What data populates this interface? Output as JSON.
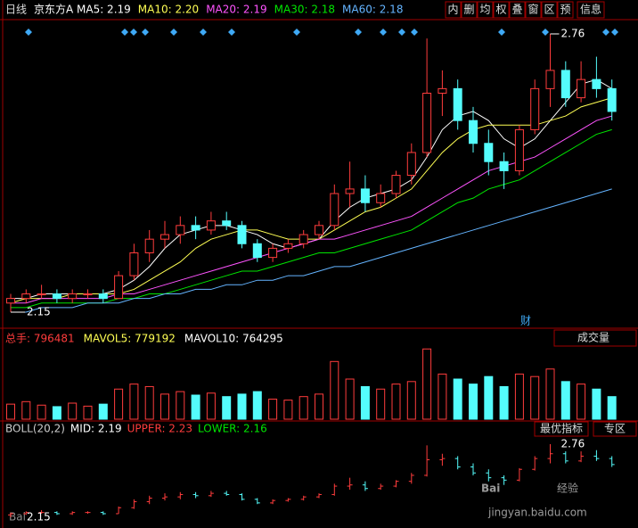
{
  "header": {
    "period": "日线",
    "name": "京东方A",
    "buttons": [
      "内",
      "删",
      "均",
      "权",
      "叠",
      "窗",
      "区",
      "预",
      "信息"
    ]
  },
  "chart_data": [
    {
      "type": "candlestick",
      "open": [
        2.17,
        2.18,
        2.19,
        2.19,
        2.18,
        2.19,
        2.19,
        2.18,
        2.23,
        2.28,
        2.31,
        2.32,
        2.34,
        2.33,
        2.35,
        2.34,
        2.3,
        2.27,
        2.29,
        2.3,
        2.32,
        2.34,
        2.41,
        2.42,
        2.39,
        2.41,
        2.45,
        2.5,
        2.63,
        2.64,
        2.57,
        2.52,
        2.48,
        2.46,
        2.55,
        2.64,
        2.68,
        2.62,
        2.66,
        2.64
      ],
      "high": [
        2.19,
        2.2,
        2.21,
        2.2,
        2.2,
        2.2,
        2.2,
        2.24,
        2.3,
        2.33,
        2.35,
        2.36,
        2.36,
        2.37,
        2.37,
        2.35,
        2.31,
        2.3,
        2.31,
        2.33,
        2.35,
        2.43,
        2.48,
        2.45,
        2.43,
        2.46,
        2.52,
        2.75,
        2.68,
        2.66,
        2.6,
        2.55,
        2.5,
        2.56,
        2.66,
        2.76,
        2.7,
        2.7,
        2.71,
        2.66
      ],
      "low": [
        2.15,
        2.17,
        2.18,
        2.17,
        2.17,
        2.18,
        2.17,
        2.18,
        2.22,
        2.26,
        2.29,
        2.3,
        2.31,
        2.32,
        2.33,
        2.29,
        2.26,
        2.26,
        2.28,
        2.29,
        2.31,
        2.33,
        2.38,
        2.37,
        2.38,
        2.4,
        2.43,
        2.49,
        2.58,
        2.55,
        2.5,
        2.45,
        2.42,
        2.45,
        2.54,
        2.6,
        2.6,
        2.61,
        2.62,
        2.57
      ],
      "close": [
        2.18,
        2.19,
        2.19,
        2.18,
        2.19,
        2.19,
        2.18,
        2.23,
        2.28,
        2.31,
        2.32,
        2.34,
        2.33,
        2.35,
        2.34,
        2.3,
        2.27,
        2.29,
        2.3,
        2.32,
        2.34,
        2.41,
        2.42,
        2.39,
        2.41,
        2.45,
        2.5,
        2.63,
        2.64,
        2.57,
        2.52,
        2.48,
        2.46,
        2.55,
        2.64,
        2.68,
        2.62,
        2.66,
        2.64,
        2.59
      ],
      "up_color": "#ff3c3c",
      "down_color": "#54fcfc",
      "max_label": 2.76,
      "min_label": 2.15,
      "annotation": "财",
      "series": [
        {
          "label": "MA5: 2.19",
          "color": "#ffffff",
          "values": [
            2.18,
            2.18,
            2.19,
            2.19,
            2.19,
            2.19,
            2.19,
            2.2,
            2.22,
            2.25,
            2.29,
            2.32,
            2.33,
            2.34,
            2.34,
            2.33,
            2.32,
            2.3,
            2.29,
            2.3,
            2.31,
            2.35,
            2.38,
            2.4,
            2.41,
            2.42,
            2.44,
            2.49,
            2.55,
            2.58,
            2.59,
            2.57,
            2.53,
            2.51,
            2.53,
            2.57,
            2.61,
            2.65,
            2.66,
            2.64
          ]
        },
        {
          "label": "MA10: 2.20",
          "color": "#ffff54",
          "values": [
            2.17,
            2.18,
            2.18,
            2.18,
            2.19,
            2.19,
            2.19,
            2.19,
            2.2,
            2.22,
            2.24,
            2.26,
            2.29,
            2.31,
            2.32,
            2.33,
            2.33,
            2.32,
            2.31,
            2.31,
            2.31,
            2.33,
            2.35,
            2.37,
            2.38,
            2.4,
            2.42,
            2.46,
            2.5,
            2.53,
            2.55,
            2.56,
            2.56,
            2.56,
            2.56,
            2.57,
            2.58,
            2.6,
            2.61,
            2.62
          ]
        },
        {
          "label": "MA20: 2.19",
          "color": "#ff54ff",
          "values": [
            2.17,
            2.17,
            2.18,
            2.18,
            2.18,
            2.18,
            2.18,
            2.19,
            2.19,
            2.2,
            2.21,
            2.22,
            2.23,
            2.24,
            2.25,
            2.26,
            2.27,
            2.28,
            2.29,
            2.3,
            2.31,
            2.31,
            2.32,
            2.33,
            2.34,
            2.35,
            2.36,
            2.38,
            2.4,
            2.42,
            2.44,
            2.46,
            2.47,
            2.48,
            2.49,
            2.51,
            2.53,
            2.55,
            2.57,
            2.58
          ]
        },
        {
          "label": "MA30: 2.18",
          "color": "#00e600",
          "values": [
            2.16,
            2.16,
            2.17,
            2.17,
            2.17,
            2.17,
            2.17,
            2.18,
            2.18,
            2.19,
            2.19,
            2.2,
            2.21,
            2.22,
            2.23,
            2.24,
            2.24,
            2.25,
            2.26,
            2.27,
            2.28,
            2.28,
            2.29,
            2.3,
            2.31,
            2.32,
            2.33,
            2.35,
            2.37,
            2.39,
            2.4,
            2.42,
            2.43,
            2.44,
            2.46,
            2.48,
            2.5,
            2.52,
            2.54,
            2.55
          ]
        },
        {
          "label": "MA60: 2.18",
          "color": "#64b4ff",
          "values": [
            2.15,
            2.15,
            2.16,
            2.16,
            2.16,
            2.17,
            2.17,
            2.17,
            2.18,
            2.18,
            2.19,
            2.19,
            2.2,
            2.2,
            2.21,
            2.21,
            2.22,
            2.22,
            2.23,
            2.23,
            2.24,
            2.25,
            2.25,
            2.26,
            2.27,
            2.28,
            2.29,
            2.3,
            2.31,
            2.32,
            2.33,
            2.34,
            2.35,
            2.36,
            2.37,
            2.38,
            2.39,
            2.4,
            2.41,
            2.42
          ]
        }
      ]
    },
    {
      "type": "bar",
      "legend": [
        {
          "label": "总手: 796481",
          "color": "#ff3c3c"
        },
        {
          "label": "MAVOL5: 779192",
          "color": "#ffff54"
        },
        {
          "label": "MAVOL10: 764295",
          "color": "#ffffff"
        }
      ],
      "selector": "成交量",
      "values": [
        300000,
        350000,
        280000,
        250000,
        320000,
        260000,
        300000,
        600000,
        700000,
        650000,
        500000,
        550000,
        480000,
        520000,
        450000,
        500000,
        550000,
        400000,
        380000,
        450000,
        500000,
        1150000,
        800000,
        650000,
        600000,
        700000,
        750000,
        1400000,
        900000,
        800000,
        700000,
        850000,
        650000,
        900000,
        850000,
        1000000,
        750000,
        700000,
        600000,
        450000
      ],
      "ylim": [
        0,
        1600000
      ]
    },
    {
      "type": "boll",
      "legend": [
        {
          "label": "BOLL(20,2)",
          "color": "#cccccc"
        },
        {
          "label": "MID: 2.19",
          "color": "#ffffff"
        },
        {
          "label": "UPPER: 2.23",
          "color": "#ff3c3c"
        },
        {
          "label": "LOWER: 2.16",
          "color": "#00e600"
        }
      ],
      "buttons": [
        "最优指标",
        "专区"
      ]
    }
  ],
  "watermark": {
    "logo": "Bai",
    "text": "经验",
    "url": "jingyan.baidu.com"
  }
}
